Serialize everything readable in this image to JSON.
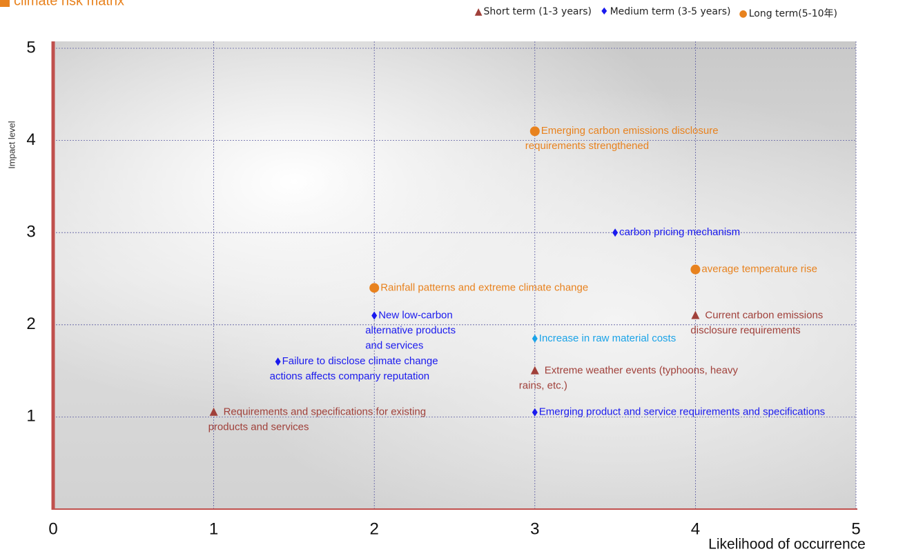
{
  "chart_data": {
    "type": "scatter",
    "title": "climate risk matrix",
    "x_label": "Likelihood of occurrence",
    "y_label": "Impact level",
    "xlim": [
      0,
      5
    ],
    "ylim": [
      0,
      5
    ],
    "xticks": [
      0,
      1,
      2,
      3,
      4,
      5
    ],
    "yticks": [
      1,
      2,
      3,
      4,
      5
    ],
    "grid": true,
    "legend": "top-right",
    "series": [
      {
        "name": "Short term (1-3 years)",
        "marker": "triangle",
        "color": "#a0403a",
        "x": [
          4,
          3,
          1
        ],
        "values": [
          2.1,
          1.5,
          1.05
        ],
        "labels": [
          [
            "Current carbon emissions",
            "disclosure requirements"
          ],
          [
            "Extreme weather events (typhoons, heavy",
            "rains, etc.)"
          ],
          [
            "Requirements and specifications for existing",
            "products and services"
          ]
        ]
      },
      {
        "name": "Medium term (3-5 years)",
        "marker": "diamond",
        "color": "#1a1aee",
        "point_colors": [
          "#1a1aee",
          "#1a1aee",
          "#1aa3e8",
          "#1a1aee",
          "#1a1aee"
        ],
        "x": [
          3.5,
          2,
          3,
          1.4,
          3
        ],
        "values": [
          3,
          2.1,
          1.85,
          1.6,
          1.05
        ],
        "labels": [
          [
            "carbon pricing mechanism"
          ],
          [
            "New low-carbon",
            "alternative products",
            "and services"
          ],
          [
            "Increase in raw material costs"
          ],
          [
            "Failure to disclose climate change",
            "actions affects company reputation"
          ],
          [
            "Emerging product and service requirements and specifications"
          ]
        ]
      },
      {
        "name": "Long term(5-10年)",
        "marker": "circle",
        "color": "#e8821e",
        "x": [
          3,
          4,
          2
        ],
        "values": [
          4.1,
          2.6,
          2.4
        ],
        "labels": [
          [
            "Emerging carbon emissions disclosure",
            "requirements strengthened"
          ],
          [
            "average temperature rise"
          ],
          [
            "Rainfall patterns and extreme climate change"
          ]
        ]
      }
    ]
  }
}
